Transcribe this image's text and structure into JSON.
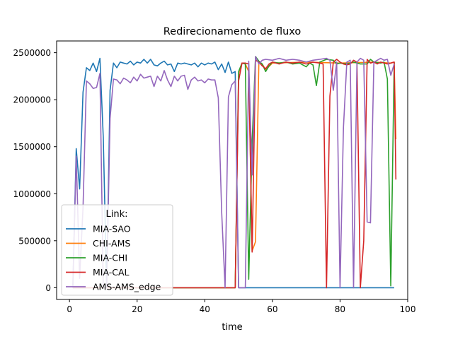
{
  "chart_data": {
    "type": "line",
    "title": "Redirecionamento de fluxo",
    "xlabel": "time",
    "ylabel": "",
    "xlim": [
      -3.8,
      100
    ],
    "ylim": [
      -125000,
      2625000
    ],
    "xticks": [
      0,
      20,
      40,
      60,
      80,
      100
    ],
    "yticks": [
      0,
      500000,
      1000000,
      1500000,
      2000000,
      2500000
    ],
    "grid": false,
    "legend": {
      "title": "Link:",
      "position": "lower-left"
    },
    "series": [
      {
        "name": "MIA-SAO",
        "color": "#1f77b4",
        "points": [
          [
            1,
            0
          ],
          [
            2,
            1480000
          ],
          [
            3,
            1050000
          ],
          [
            4,
            2080000
          ],
          [
            5,
            2340000
          ],
          [
            6,
            2310000
          ],
          [
            7,
            2390000
          ],
          [
            8,
            2300000
          ],
          [
            9,
            2440000
          ],
          [
            10,
            1600000
          ],
          [
            11,
            0
          ],
          [
            12,
            2100000
          ],
          [
            13,
            2390000
          ],
          [
            14,
            2340000
          ],
          [
            15,
            2400000
          ],
          [
            16,
            2390000
          ],
          [
            17,
            2380000
          ],
          [
            18,
            2410000
          ],
          [
            19,
            2370000
          ],
          [
            20,
            2400000
          ],
          [
            21,
            2390000
          ],
          [
            22,
            2430000
          ],
          [
            23,
            2390000
          ],
          [
            24,
            2430000
          ],
          [
            25,
            2370000
          ],
          [
            26,
            2360000
          ],
          [
            27,
            2390000
          ],
          [
            28,
            2410000
          ],
          [
            29,
            2370000
          ],
          [
            30,
            2380000
          ],
          [
            31,
            2300000
          ],
          [
            32,
            2390000
          ],
          [
            33,
            2380000
          ],
          [
            34,
            2390000
          ],
          [
            35,
            2380000
          ],
          [
            36,
            2370000
          ],
          [
            37,
            2390000
          ],
          [
            38,
            2350000
          ],
          [
            39,
            2390000
          ],
          [
            40,
            2370000
          ],
          [
            41,
            2390000
          ],
          [
            42,
            2380000
          ],
          [
            43,
            2400000
          ],
          [
            44,
            2320000
          ],
          [
            45,
            2380000
          ],
          [
            46,
            2290000
          ],
          [
            47,
            2400000
          ],
          [
            48,
            2280000
          ],
          [
            49,
            2300000
          ],
          [
            50,
            0
          ],
          [
            96,
            0
          ]
        ]
      },
      {
        "name": "CHI-AMS",
        "color": "#ff7f0e",
        "points": [
          [
            1,
            0
          ],
          [
            49,
            0
          ],
          [
            50,
            2280000
          ],
          [
            51,
            2390000
          ],
          [
            52,
            2380000
          ],
          [
            53,
            2300000
          ],
          [
            54,
            390000
          ],
          [
            55,
            490000
          ],
          [
            56,
            2390000
          ],
          [
            57,
            2380000
          ],
          [
            58,
            2320000
          ],
          [
            60,
            2390000
          ],
          [
            70,
            2400000
          ],
          [
            80,
            2390000
          ],
          [
            90,
            2400000
          ],
          [
            95,
            2390000
          ],
          [
            96,
            2400000
          ],
          [
            96.5,
            1580000
          ]
        ]
      },
      {
        "name": "MIA-CHI",
        "color": "#2ca02c",
        "points": [
          [
            1,
            0
          ],
          [
            49,
            0
          ],
          [
            50,
            2300000
          ],
          [
            51,
            2390000
          ],
          [
            52,
            2380000
          ],
          [
            53,
            90000
          ],
          [
            54,
            1550000
          ],
          [
            55,
            2460000
          ],
          [
            56,
            2410000
          ],
          [
            57,
            2380000
          ],
          [
            58,
            2300000
          ],
          [
            59,
            2360000
          ],
          [
            60,
            2400000
          ],
          [
            62,
            2390000
          ],
          [
            64,
            2400000
          ],
          [
            66,
            2380000
          ],
          [
            68,
            2390000
          ],
          [
            70,
            2350000
          ],
          [
            71,
            2390000
          ],
          [
            72,
            2370000
          ],
          [
            73,
            2150000
          ],
          [
            74,
            2400000
          ],
          [
            76,
            2430000
          ],
          [
            78,
            2420000
          ],
          [
            79,
            2380000
          ],
          [
            80,
            2390000
          ],
          [
            82,
            2380000
          ],
          [
            84,
            2400000
          ],
          [
            86,
            2380000
          ],
          [
            88,
            2380000
          ],
          [
            89,
            2430000
          ],
          [
            90,
            2400000
          ],
          [
            92,
            2390000
          ],
          [
            93,
            2400000
          ],
          [
            94,
            2220000
          ],
          [
            95,
            20000
          ],
          [
            96,
            2400000
          ]
        ]
      },
      {
        "name": "MIA-CAL",
        "color": "#d62728",
        "points": [
          [
            1,
            0
          ],
          [
            49,
            0
          ],
          [
            50,
            2200000
          ],
          [
            51,
            2390000
          ],
          [
            52,
            2390000
          ],
          [
            53,
            2380000
          ],
          [
            54,
            380000
          ],
          [
            55,
            2420000
          ],
          [
            56,
            2400000
          ],
          [
            57,
            2360000
          ],
          [
            58,
            2330000
          ],
          [
            59,
            2380000
          ],
          [
            60,
            2400000
          ],
          [
            62,
            2380000
          ],
          [
            64,
            2400000
          ],
          [
            66,
            2390000
          ],
          [
            68,
            2400000
          ],
          [
            70,
            2380000
          ],
          [
            72,
            2400000
          ],
          [
            74,
            2390000
          ],
          [
            75,
            2380000
          ],
          [
            76,
            0
          ],
          [
            77,
            2040000
          ],
          [
            78,
            2400000
          ],
          [
            79,
            2430000
          ],
          [
            80,
            2400000
          ],
          [
            81,
            2380000
          ],
          [
            82,
            2370000
          ],
          [
            83,
            2380000
          ],
          [
            84,
            2420000
          ],
          [
            85,
            2400000
          ],
          [
            86,
            0
          ],
          [
            87,
            500000
          ],
          [
            88,
            2430000
          ],
          [
            89,
            2390000
          ],
          [
            90,
            2400000
          ],
          [
            91,
            2380000
          ],
          [
            92,
            2400000
          ],
          [
            93,
            2390000
          ],
          [
            94,
            2380000
          ],
          [
            95,
            2390000
          ],
          [
            96,
            2400000
          ],
          [
            96.5,
            1150000
          ]
        ]
      },
      {
        "name": "AMS-AMS_edge",
        "color": "#9467bd",
        "points": [
          [
            1,
            0
          ],
          [
            2,
            1400000
          ],
          [
            3,
            100000
          ],
          [
            4,
            850000
          ],
          [
            5,
            2200000
          ],
          [
            6,
            2170000
          ],
          [
            7,
            2120000
          ],
          [
            8,
            2130000
          ],
          [
            9,
            2280000
          ],
          [
            10,
            0
          ],
          [
            11,
            0
          ],
          [
            12,
            1800000
          ],
          [
            13,
            2220000
          ],
          [
            14,
            2210000
          ],
          [
            15,
            2170000
          ],
          [
            16,
            2230000
          ],
          [
            17,
            2210000
          ],
          [
            18,
            2180000
          ],
          [
            19,
            2240000
          ],
          [
            20,
            2200000
          ],
          [
            21,
            2270000
          ],
          [
            22,
            2230000
          ],
          [
            23,
            2240000
          ],
          [
            24,
            2250000
          ],
          [
            25,
            2140000
          ],
          [
            26,
            2250000
          ],
          [
            27,
            2200000
          ],
          [
            28,
            2310000
          ],
          [
            29,
            2210000
          ],
          [
            30,
            2140000
          ],
          [
            31,
            2250000
          ],
          [
            32,
            2200000
          ],
          [
            33,
            2250000
          ],
          [
            34,
            2260000
          ],
          [
            35,
            2110000
          ],
          [
            36,
            2210000
          ],
          [
            37,
            2240000
          ],
          [
            38,
            2200000
          ],
          [
            39,
            2210000
          ],
          [
            40,
            2180000
          ],
          [
            41,
            2220000
          ],
          [
            42,
            2210000
          ],
          [
            43,
            2210000
          ],
          [
            44,
            2020000
          ],
          [
            45,
            800000
          ],
          [
            46,
            0
          ],
          [
            47,
            2030000
          ],
          [
            48,
            2160000
          ],
          [
            49,
            2200000
          ],
          [
            50,
            0
          ],
          [
            51,
            0
          ],
          [
            52,
            0
          ],
          [
            53,
            2410000
          ],
          [
            54,
            1200000
          ],
          [
            55,
            2460000
          ],
          [
            56,
            2380000
          ],
          [
            57,
            2420000
          ],
          [
            58,
            2430000
          ],
          [
            60,
            2420000
          ],
          [
            62,
            2440000
          ],
          [
            64,
            2420000
          ],
          [
            66,
            2430000
          ],
          [
            68,
            2420000
          ],
          [
            70,
            2400000
          ],
          [
            72,
            2420000
          ],
          [
            74,
            2430000
          ],
          [
            76,
            2440000
          ],
          [
            77,
            2420000
          ],
          [
            78,
            2100000
          ],
          [
            79,
            2400000
          ],
          [
            80,
            0
          ],
          [
            81,
            1700000
          ],
          [
            82,
            2400000
          ],
          [
            83,
            2420000
          ],
          [
            84,
            0
          ],
          [
            85,
            2400000
          ],
          [
            86,
            2440000
          ],
          [
            87,
            2420000
          ],
          [
            88,
            700000
          ],
          [
            89,
            690000
          ],
          [
            90,
            2400000
          ],
          [
            91,
            2420000
          ],
          [
            92,
            2440000
          ],
          [
            93,
            2420000
          ],
          [
            94,
            2430000
          ],
          [
            95,
            2260000
          ],
          [
            96,
            2380000
          ]
        ]
      }
    ]
  }
}
